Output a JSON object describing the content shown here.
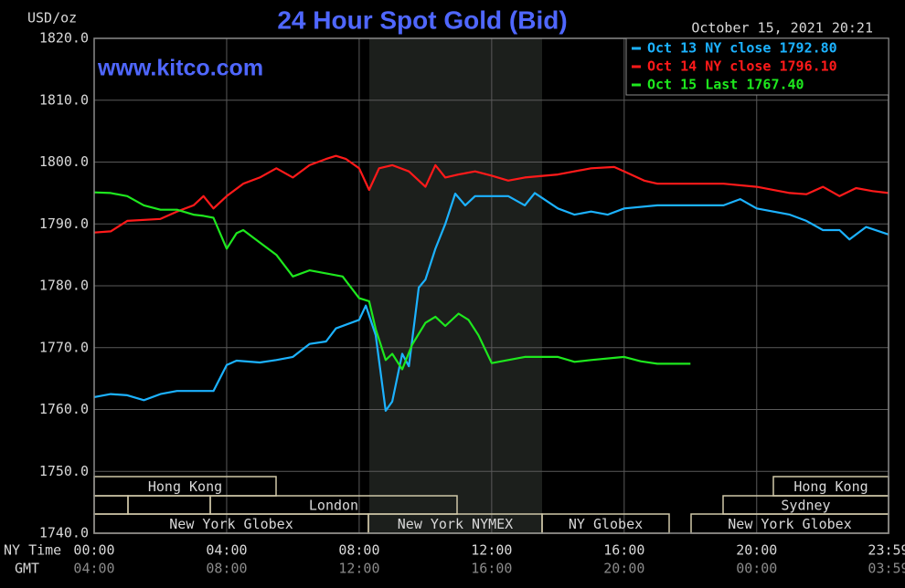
{
  "chart_data": {
    "type": "line",
    "title": "24 Hour Spot Gold (Bid)",
    "watermark": "www.kitco.com",
    "y_label": "USD/oz",
    "timestamp": "October 15, 2021 20:21",
    "x_label": "NY Time",
    "x2_label": "GMT",
    "xlim": [
      0,
      23.98
    ],
    "ylim": [
      1740,
      1820
    ],
    "yticks": [
      {
        "value": 1740,
        "label": "1740.0"
      },
      {
        "value": 1750,
        "label": "1750.0"
      },
      {
        "value": 1760,
        "label": "1760.0"
      },
      {
        "value": 1770,
        "label": "1770.0"
      },
      {
        "value": 1780,
        "label": "1780.0"
      },
      {
        "value": 1790,
        "label": "1790.0"
      },
      {
        "value": 1800,
        "label": "1800.0"
      },
      {
        "value": 1810,
        "label": "1810.0"
      },
      {
        "value": 1820,
        "label": "1820.0"
      }
    ],
    "xticks": [
      {
        "value": 0,
        "label": "00:00"
      },
      {
        "value": 4,
        "label": "04:00"
      },
      {
        "value": 8,
        "label": "08:00"
      },
      {
        "value": 12,
        "label": "12:00"
      },
      {
        "value": 16,
        "label": "16:00"
      },
      {
        "value": 20,
        "label": "20:00"
      },
      {
        "value": 23.98,
        "label": "23:59"
      }
    ],
    "x2ticks": [
      {
        "value": 0,
        "label": "04:00"
      },
      {
        "value": 4,
        "label": "08:00"
      },
      {
        "value": 8,
        "label": "12:00"
      },
      {
        "value": 12,
        "label": "16:00"
      },
      {
        "value": 16,
        "label": "20:00"
      },
      {
        "value": 20,
        "label": "00:00"
      },
      {
        "value": 23.98,
        "label": "03:59"
      }
    ],
    "grid": true,
    "sessions": [
      "Hong Kong",
      "London",
      "New York Globex",
      "New York NYMEX",
      "NY Globex",
      "Hong Kong",
      "Sydney",
      "New York Globex"
    ],
    "series": [
      {
        "name": "Oct 13 NY close 1792.80",
        "color": "#1cb2ff",
        "x": [
          0,
          0.5,
          1,
          1.5,
          2,
          2.5,
          3,
          3.6,
          4,
          4.3,
          5,
          5.5,
          6,
          6.5,
          7,
          7.3,
          8,
          8.2,
          8.5,
          8.8,
          9,
          9.3,
          9.5,
          9.8,
          10,
          10.3,
          10.6,
          10.9,
          11.2,
          11.5,
          12,
          12.5,
          13,
          13.3,
          14,
          14.5,
          15,
          15.5,
          16,
          17,
          18,
          19,
          19.5,
          20,
          21,
          21.5,
          22,
          22.5,
          22.8,
          23.3,
          23.98
        ],
        "values": [
          1762,
          1762.5,
          1762.3,
          1761.5,
          1762.5,
          1763,
          1763,
          1763,
          1767.2,
          1767.9,
          1767.6,
          1768,
          1768.5,
          1770.6,
          1771,
          1773.1,
          1774.5,
          1776.8,
          1772,
          1759.8,
          1761.3,
          1769,
          1767,
          1779.7,
          1781,
          1786,
          1790,
          1794.9,
          1793,
          1794.5,
          1794.5,
          1794.5,
          1793,
          1795,
          1792.5,
          1791.5,
          1792,
          1791.5,
          1792.5,
          1793,
          1793,
          1793,
          1794,
          1792.5,
          1791.5,
          1790.5,
          1789,
          1789,
          1787.5,
          1789.5,
          1788.3
        ]
      },
      {
        "name": "Oct 14 NY close 1796.10",
        "color": "#ff1a1a",
        "x": [
          0,
          0.5,
          1,
          2,
          2.5,
          3,
          3.3,
          3.6,
          4,
          4.5,
          5,
          5.5,
          6,
          6.5,
          7,
          7.3,
          7.6,
          8,
          8.3,
          8.6,
          9,
          9.5,
          10,
          10.3,
          10.6,
          11,
          11.5,
          12,
          12.5,
          13,
          14,
          15,
          15.7,
          16,
          16.6,
          17,
          18,
          19,
          20,
          21,
          21.5,
          22,
          22.5,
          23,
          23.5,
          23.98
        ],
        "values": [
          1788.6,
          1788.8,
          1790.5,
          1790.8,
          1792,
          1793,
          1794.5,
          1792.5,
          1794.5,
          1796.5,
          1797.5,
          1799,
          1797.5,
          1799.5,
          1800.5,
          1801,
          1800.5,
          1799,
          1795.5,
          1799,
          1799.5,
          1798.5,
          1796,
          1799.5,
          1797.5,
          1798,
          1798.5,
          1797.8,
          1797,
          1797.5,
          1798,
          1799,
          1799.2,
          1798.5,
          1797,
          1796.5,
          1796.5,
          1796.5,
          1796,
          1795,
          1794.8,
          1796,
          1794.5,
          1795.8,
          1795.3,
          1795
        ]
      },
      {
        "name": "Oct 15 Last 1767.40",
        "color": "#1ee81e",
        "x": [
          0,
          0.5,
          1,
          1.5,
          2,
          2.5,
          3,
          3.3,
          3.6,
          4,
          4.3,
          4.5,
          5,
          5.5,
          6,
          6.5,
          7,
          7.5,
          8,
          8.3,
          8.5,
          8.8,
          9,
          9.3,
          9.6,
          10,
          10.3,
          10.6,
          11,
          11.3,
          11.6,
          12,
          12.5,
          13,
          13.5,
          14,
          14.5,
          15,
          16,
          16.5,
          17,
          18
        ],
        "values": [
          1795.1,
          1795,
          1794.5,
          1793,
          1792.3,
          1792.3,
          1791.5,
          1791.3,
          1791,
          1786,
          1788.5,
          1789,
          1787,
          1785,
          1781.5,
          1782.5,
          1782,
          1781.5,
          1778,
          1777.5,
          1773,
          1768,
          1769,
          1766.5,
          1770.5,
          1774,
          1775,
          1773.5,
          1775.5,
          1774.5,
          1772,
          1767.5,
          1768,
          1768.5,
          1768.5,
          1768.5,
          1767.7,
          1768,
          1768.5,
          1767.8,
          1767.4,
          1767.4
        ]
      }
    ]
  }
}
